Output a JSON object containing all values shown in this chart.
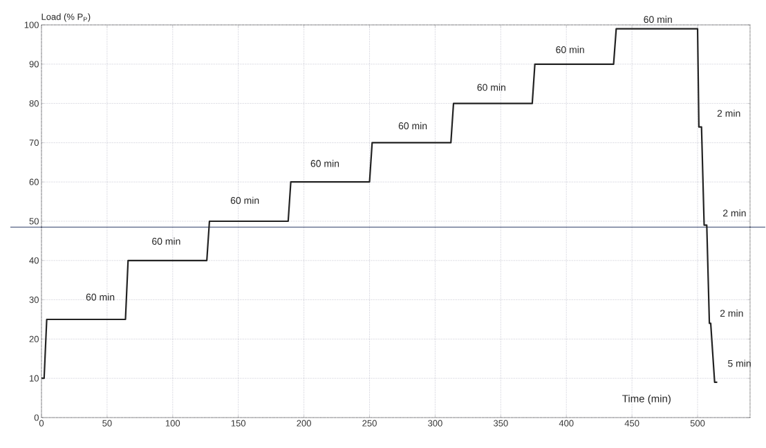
{
  "chart_data": {
    "type": "line",
    "ylabel": "Load (% P$_{P}$)",
    "xlabel": "Time (min)",
    "x": [
      0,
      2,
      4,
      64,
      66,
      126,
      128,
      188,
      190,
      250,
      252,
      312,
      314,
      374,
      376,
      436,
      438,
      500,
      501,
      503,
      505,
      507,
      509,
      510,
      513,
      515
    ],
    "series": [
      {
        "color": "#222222",
        "values": [
          10,
          10,
          25,
          25,
          40,
          40,
          50,
          50,
          60,
          60,
          70,
          70,
          80,
          80,
          90,
          90,
          99,
          99,
          74,
          74,
          49,
          49,
          24,
          24,
          9,
          9
        ]
      }
    ],
    "xlim": [
      0,
      540
    ],
    "xticks": [
      0,
      50,
      100,
      150,
      200,
      250,
      300,
      350,
      400,
      450,
      500
    ],
    "ylim": [
      0,
      100
    ],
    "yticks": [
      0,
      10,
      20,
      30,
      40,
      50,
      60,
      70,
      80,
      90,
      100
    ],
    "grid": true,
    "marker": "none",
    "line_style": "solid",
    "ref_lines": [
      {
        "axis": "y",
        "value": 48.5,
        "color": "#1a2a5a"
      }
    ],
    "annotations": [
      "60 min",
      "60 min",
      "60 min",
      "60 min",
      "60 min",
      "60 min",
      "60 min",
      "60 min",
      "2 min",
      "2 min",
      "2 min",
      "5 min"
    ]
  }
}
